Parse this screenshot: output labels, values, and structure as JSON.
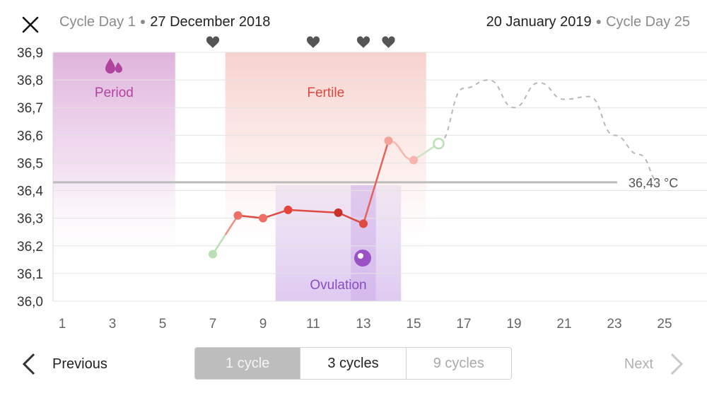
{
  "header": {
    "left_cycle_day": "Cycle Day 1",
    "left_date": "27 December 2018",
    "right_date": "20 January 2019",
    "right_cycle_day": "Cycle Day 25"
  },
  "footer": {
    "previous_label": "Previous",
    "next_label": "Next",
    "segments": [
      "1 cycle",
      "3 cycles",
      "9 cycles"
    ]
  },
  "colors": {
    "period": "#d9a6d6",
    "fertile": "#f4c6c0",
    "ovulation": "#cdb3e6",
    "temp_line": "#de4b43",
    "baseline": "#bcbcbc",
    "forecast": "#b8b8b8"
  },
  "chart_data": {
    "type": "line",
    "x_ticks": [
      1,
      3,
      5,
      7,
      9,
      11,
      13,
      15,
      17,
      19,
      21,
      23,
      25
    ],
    "y_ticks": [
      "36,0",
      "36,1",
      "36,2",
      "36,3",
      "36,4",
      "36,5",
      "36,6",
      "36,7",
      "36,8",
      "36,9"
    ],
    "ylim": [
      36.0,
      36.9
    ],
    "xlim": [
      1,
      26
    ],
    "baseline": {
      "value": 36.43,
      "label": "36,43 °C"
    },
    "zones": [
      {
        "name": "period",
        "label": "Period",
        "from_day": 0.5,
        "to_day": 5.5
      },
      {
        "name": "fertile",
        "label": "Fertile",
        "from_day": 7.5,
        "to_day": 15.5
      },
      {
        "name": "ovulation",
        "label": "Ovulation",
        "from_day": 9.5,
        "to_day": 14.5
      }
    ],
    "hearts_days": [
      7,
      11,
      13,
      14
    ],
    "series": [
      {
        "points": [
          {
            "day": 7,
            "temp": 36.17
          },
          {
            "day": 8,
            "temp": 36.31
          },
          {
            "day": 9,
            "temp": 36.3
          },
          {
            "day": 10,
            "temp": 36.33
          },
          {
            "day": 12,
            "temp": 36.32
          },
          {
            "day": 13,
            "temp": 36.28
          },
          {
            "day": 14,
            "temp": 36.58
          },
          {
            "day": 15,
            "temp": 36.51
          },
          {
            "day": 16,
            "temp": 36.57
          }
        ]
      },
      {
        "forecast": [
          {
            "day": 16,
            "temp": 36.57
          },
          {
            "day": 17,
            "temp": 36.77
          },
          {
            "day": 18,
            "temp": 36.8
          },
          {
            "day": 19,
            "temp": 36.7
          },
          {
            "day": 20,
            "temp": 36.79
          },
          {
            "day": 21,
            "temp": 36.73
          },
          {
            "day": 22,
            "temp": 36.74
          },
          {
            "day": 23,
            "temp": 36.6
          },
          {
            "day": 24,
            "temp": 36.53
          },
          {
            "day": 24.8,
            "temp": 36.43
          }
        ]
      }
    ]
  }
}
